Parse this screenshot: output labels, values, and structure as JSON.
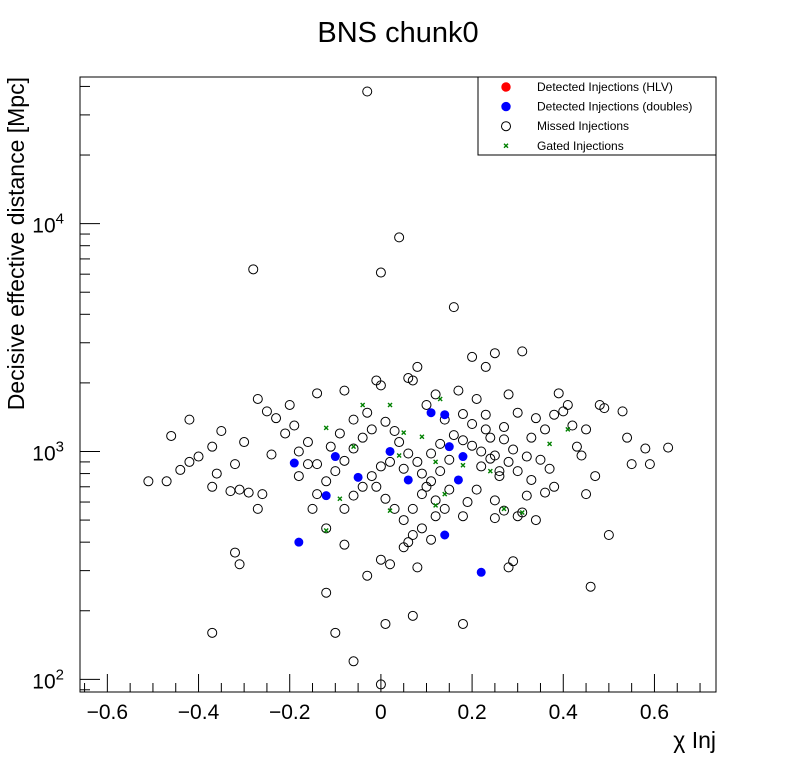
{
  "chart_data": {
    "type": "scatter",
    "title": "BNS chunk0",
    "xlabel": "χ Inj",
    "ylabel": "Decisive effective distance [Mpc]",
    "xlim": [
      -0.66,
      0.735
    ],
    "ylim": [
      88,
      44000
    ],
    "yscale": "log",
    "grid": false,
    "legend_position": "top-right",
    "x_ticks": [
      {
        "value": -0.6,
        "label": "−0.6"
      },
      {
        "value": -0.4,
        "label": "−0.4"
      },
      {
        "value": -0.2,
        "label": "−0.2"
      },
      {
        "value": 0,
        "label": "0"
      },
      {
        "value": 0.2,
        "label": "0.2"
      },
      {
        "value": 0.4,
        "label": "0.4"
      },
      {
        "value": 0.6,
        "label": "0.6"
      }
    ],
    "y_ticks": [
      {
        "value": 100,
        "base": "10",
        "exp": "2"
      },
      {
        "value": 1000,
        "base": "10",
        "exp": "3"
      },
      {
        "value": 10000,
        "base": "10",
        "exp": "4"
      }
    ],
    "series": [
      {
        "name": "Detected Injections (HLV)",
        "marker": "filled-circle",
        "color": "#ff0000",
        "points": []
      },
      {
        "name": "Detected Injections (doubles)",
        "marker": "filled-circle",
        "color": "#0000ff",
        "points": [
          [
            -0.19,
            890
          ],
          [
            -0.18,
            400
          ],
          [
            -0.12,
            640
          ],
          [
            -0.1,
            950
          ],
          [
            -0.05,
            770
          ],
          [
            0.06,
            750
          ],
          [
            0.11,
            1480
          ],
          [
            0.14,
            1450
          ],
          [
            0.15,
            1050
          ],
          [
            0.17,
            750
          ],
          [
            0.14,
            430
          ],
          [
            0.22,
            295
          ],
          [
            0.18,
            950
          ],
          [
            0.02,
            1000
          ]
        ]
      },
      {
        "name": "Missed Injections",
        "marker": "open-circle",
        "color": "#000000",
        "points": [
          [
            -0.03,
            38000
          ],
          [
            0.04,
            8700
          ],
          [
            0.0,
            6100
          ],
          [
            -0.28,
            6300
          ],
          [
            0.16,
            4300
          ],
          [
            0.2,
            2600
          ],
          [
            0.31,
            2750
          ],
          [
            0.25,
            2700
          ],
          [
            0.08,
            2350
          ],
          [
            0.23,
            2350
          ],
          [
            0.06,
            2100
          ],
          [
            0.07,
            2050
          ],
          [
            -0.01,
            2050
          ],
          [
            0.0,
            1950
          ],
          [
            -0.08,
            1850
          ],
          [
            0.17,
            1850
          ],
          [
            0.39,
            1800
          ],
          [
            0.12,
            1780
          ],
          [
            0.28,
            1780
          ],
          [
            0.21,
            1700
          ],
          [
            -0.14,
            1800
          ],
          [
            -0.2,
            1600
          ],
          [
            -0.27,
            1700
          ],
          [
            -0.25,
            1500
          ],
          [
            -0.23,
            1400
          ],
          [
            -0.42,
            1380
          ],
          [
            -0.35,
            1230
          ],
          [
            -0.46,
            1170
          ],
          [
            -0.3,
            1100
          ],
          [
            -0.37,
            1050
          ],
          [
            -0.4,
            950
          ],
          [
            -0.42,
            900
          ],
          [
            -0.44,
            830
          ],
          [
            -0.36,
            800
          ],
          [
            -0.47,
            740
          ],
          [
            -0.51,
            740
          ],
          [
            -0.37,
            700
          ],
          [
            -0.31,
            680
          ],
          [
            -0.29,
            660
          ],
          [
            -0.26,
            650
          ],
          [
            -0.27,
            560
          ],
          [
            -0.31,
            320
          ],
          [
            -0.32,
            360
          ],
          [
            -0.32,
            880
          ],
          [
            -0.33,
            670
          ],
          [
            -0.37,
            160
          ],
          [
            -0.1,
            160
          ],
          [
            0.0,
            95
          ],
          [
            0.01,
            175
          ],
          [
            0.07,
            190
          ],
          [
            0.18,
            175
          ],
          [
            -0.06,
            120
          ],
          [
            -0.12,
            240
          ],
          [
            -0.08,
            390
          ],
          [
            -0.03,
            285
          ],
          [
            0.0,
            335
          ],
          [
            0.02,
            320
          ],
          [
            0.05,
            380
          ],
          [
            0.06,
            400
          ],
          [
            0.08,
            310
          ],
          [
            0.28,
            310
          ],
          [
            0.29,
            330
          ],
          [
            0.46,
            255
          ],
          [
            0.5,
            430
          ],
          [
            0.55,
            880
          ],
          [
            0.54,
            1150
          ],
          [
            0.53,
            1500
          ],
          [
            0.49,
            1550
          ],
          [
            0.48,
            1600
          ],
          [
            0.45,
            1250
          ],
          [
            0.42,
            1300
          ],
          [
            0.41,
            1600
          ],
          [
            0.4,
            1500
          ],
          [
            0.38,
            1450
          ],
          [
            0.36,
            1250
          ],
          [
            0.34,
            1400
          ],
          [
            0.33,
            1150
          ],
          [
            0.32,
            950
          ],
          [
            0.35,
            920
          ],
          [
            0.37,
            840
          ],
          [
            0.38,
            700
          ],
          [
            0.36,
            660
          ],
          [
            0.33,
            750
          ],
          [
            0.3,
            520
          ],
          [
            0.31,
            540
          ],
          [
            0.32,
            640
          ],
          [
            0.34,
            500
          ],
          [
            0.27,
            550
          ],
          [
            0.25,
            610
          ],
          [
            0.25,
            510
          ],
          [
            0.63,
            1040
          ],
          [
            0.58,
            1030
          ],
          [
            0.59,
            880
          ],
          [
            0.43,
            1050
          ],
          [
            0.44,
            960
          ],
          [
            0.47,
            780
          ],
          [
            0.45,
            650
          ],
          [
            0.23,
            1250
          ],
          [
            0.27,
            1130
          ],
          [
            0.29,
            1020
          ],
          [
            0.24,
            930
          ],
          [
            0.22,
            860
          ],
          [
            0.26,
            780
          ],
          [
            0.21,
            680
          ],
          [
            0.19,
            600
          ],
          [
            0.18,
            520
          ],
          [
            0.14,
            560
          ],
          [
            0.12,
            610
          ],
          [
            0.1,
            700
          ],
          [
            0.09,
            800
          ],
          [
            0.08,
            900
          ],
          [
            0.06,
            980
          ],
          [
            0.04,
            1100
          ],
          [
            0.03,
            1230
          ],
          [
            0.01,
            1350
          ],
          [
            -0.02,
            1250
          ],
          [
            -0.04,
            1150
          ],
          [
            -0.06,
            1030
          ],
          [
            -0.08,
            910
          ],
          [
            -0.1,
            820
          ],
          [
            -0.12,
            740
          ],
          [
            -0.14,
            650
          ],
          [
            -0.15,
            560
          ],
          [
            -0.12,
            460
          ],
          [
            -0.08,
            560
          ],
          [
            -0.06,
            640
          ],
          [
            -0.04,
            700
          ],
          [
            -0.02,
            780
          ],
          [
            0.0,
            860
          ],
          [
            0.02,
            900
          ],
          [
            0.05,
            840
          ],
          [
            0.11,
            980
          ],
          [
            0.13,
            1080
          ],
          [
            0.16,
            1180
          ],
          [
            0.2,
            1320
          ],
          [
            0.18,
            1120
          ],
          [
            0.15,
            920
          ],
          [
            0.13,
            820
          ],
          [
            0.11,
            740
          ],
          [
            0.09,
            650
          ],
          [
            0.07,
            560
          ],
          [
            0.05,
            500
          ],
          [
            0.03,
            560
          ],
          [
            0.01,
            620
          ],
          [
            -0.01,
            700
          ],
          [
            -0.16,
            1100
          ],
          [
            -0.18,
            1000
          ],
          [
            -0.19,
            1300
          ],
          [
            -0.16,
            880
          ],
          [
            -0.21,
            1200
          ],
          [
            -0.24,
            970
          ],
          [
            -0.18,
            780
          ],
          [
            -0.14,
            880
          ],
          [
            -0.11,
            1050
          ],
          [
            -0.09,
            1200
          ],
          [
            -0.06,
            1380
          ],
          [
            -0.03,
            1480
          ],
          [
            0.1,
            1600
          ],
          [
            0.14,
            1380
          ],
          [
            0.18,
            1460
          ],
          [
            0.2,
            1060
          ],
          [
            0.22,
            1000
          ],
          [
            0.24,
            1150
          ],
          [
            0.28,
            900
          ],
          [
            0.3,
            820
          ],
          [
            0.27,
            1280
          ],
          [
            0.23,
            1450
          ],
          [
            0.3,
            1480
          ],
          [
            0.25,
            960
          ],
          [
            0.26,
            820
          ],
          [
            0.15,
            680
          ],
          [
            0.12,
            520
          ],
          [
            0.09,
            460
          ],
          [
            0.11,
            410
          ],
          [
            0.07,
            430
          ]
        ]
      },
      {
        "name": "Gated Injections",
        "marker": "x",
        "color": "#008000",
        "points": [
          [
            -0.04,
            1600
          ],
          [
            0.02,
            1600
          ],
          [
            0.13,
            1700
          ],
          [
            0.09,
            1160
          ],
          [
            0.05,
            1210
          ],
          [
            0.12,
            900
          ],
          [
            -0.12,
            1270
          ],
          [
            -0.06,
            1050
          ],
          [
            0.41,
            1250
          ],
          [
            0.37,
            1080
          ],
          [
            0.24,
            820
          ],
          [
            0.18,
            870
          ],
          [
            0.14,
            650
          ],
          [
            0.02,
            550
          ],
          [
            -0.09,
            620
          ],
          [
            -0.12,
            450
          ],
          [
            0.31,
            540
          ],
          [
            0.27,
            560
          ],
          [
            0.12,
            580
          ],
          [
            0.04,
            960
          ]
        ]
      }
    ]
  }
}
